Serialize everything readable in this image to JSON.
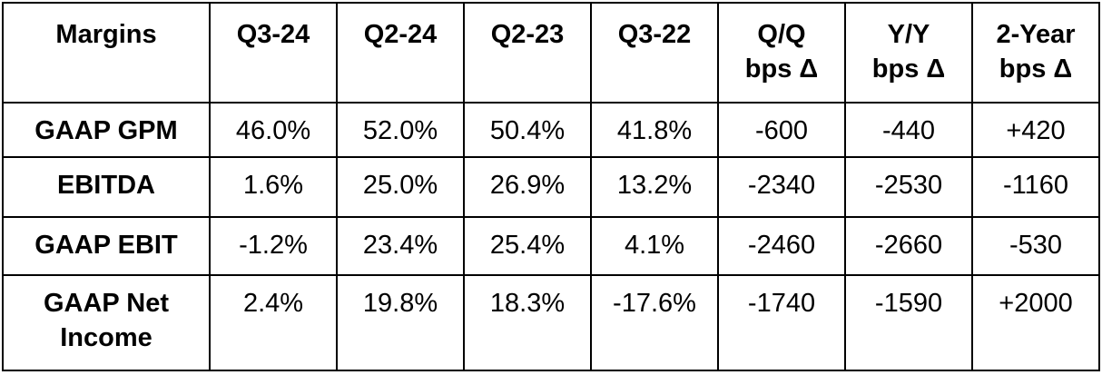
{
  "table": {
    "header": [
      "Margins",
      "Q3-24",
      "Q2-24",
      "Q2-23",
      "Q3-22",
      "Q/Q\nbps Δ",
      "Y/Y\nbps Δ",
      "2-Year\nbps Δ"
    ],
    "rows": [
      [
        "GAAP GPM",
        "46.0%",
        "52.0%",
        "50.4%",
        "41.8%",
        "-600",
        "-440",
        "+420"
      ],
      [
        "EBITDA",
        "1.6%",
        "25.0%",
        "26.9%",
        "13.2%",
        "-2340",
        "-2530",
        "-1160"
      ],
      [
        "GAAP EBIT",
        "-1.2%",
        "23.4%",
        "25.4%",
        "4.1%",
        "-2460",
        "-2660",
        "-530"
      ],
      [
        "GAAP Net Income",
        "2.4%",
        "19.8%",
        "18.3%",
        "-17.6%",
        "-1740",
        "-1590",
        "+2000"
      ]
    ]
  }
}
